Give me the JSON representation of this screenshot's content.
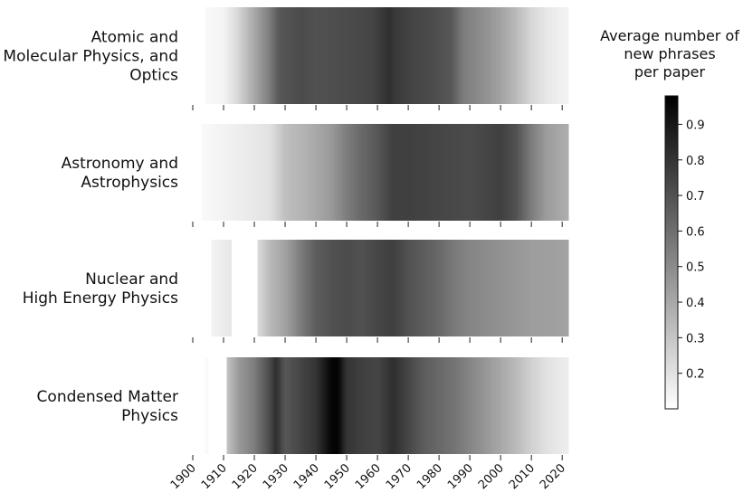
{
  "chart_data": {
    "type": "heatmap",
    "x_range": [
      1900,
      2022
    ],
    "x_ticks": [
      "1900",
      "1910",
      "1920",
      "1930",
      "1940",
      "1950",
      "1960",
      "1970",
      "1980",
      "1990",
      "2000",
      "2010",
      "2020"
    ],
    "colorbar": {
      "title_lines": [
        "Average number of",
        "new phrases",
        "per paper"
      ],
      "range": [
        0.1,
        0.98
      ],
      "ticks": [
        "0.2",
        "0.3",
        "0.4",
        "0.5",
        "0.6",
        "0.7",
        "0.8",
        "0.9"
      ],
      "colormap": "white-to-black"
    },
    "rows": [
      {
        "label_lines": [
          "Atomic and",
          "Molecular Physics, and",
          "Optics"
        ],
        "x_start": 1904,
        "x_end": 2022,
        "anchors": [
          [
            1904,
            0.12
          ],
          [
            1910,
            0.14
          ],
          [
            1914,
            0.22
          ],
          [
            1920,
            0.4
          ],
          [
            1925,
            0.55
          ],
          [
            1928,
            0.68
          ],
          [
            1935,
            0.72
          ],
          [
            1940,
            0.7
          ],
          [
            1950,
            0.72
          ],
          [
            1958,
            0.74
          ],
          [
            1964,
            0.82
          ],
          [
            1966,
            0.78
          ],
          [
            1972,
            0.74
          ],
          [
            1978,
            0.72
          ],
          [
            1984,
            0.68
          ],
          [
            1988,
            0.55
          ],
          [
            1995,
            0.48
          ],
          [
            2000,
            0.42
          ],
          [
            2005,
            0.34
          ],
          [
            2010,
            0.24
          ],
          [
            2015,
            0.18
          ],
          [
            2022,
            0.14
          ]
        ],
        "gaps": []
      },
      {
        "label_lines": [
          "Astronomy and",
          "Astrophysics"
        ],
        "x_start": 1903,
        "x_end": 2022,
        "anchors": [
          [
            1903,
            0.12
          ],
          [
            1915,
            0.16
          ],
          [
            1925,
            0.2
          ],
          [
            1930,
            0.32
          ],
          [
            1938,
            0.38
          ],
          [
            1945,
            0.45
          ],
          [
            1950,
            0.55
          ],
          [
            1955,
            0.62
          ],
          [
            1960,
            0.68
          ],
          [
            1965,
            0.76
          ],
          [
            1970,
            0.76
          ],
          [
            1980,
            0.74
          ],
          [
            1990,
            0.72
          ],
          [
            2000,
            0.76
          ],
          [
            2005,
            0.7
          ],
          [
            2010,
            0.55
          ],
          [
            2015,
            0.44
          ],
          [
            2022,
            0.38
          ]
        ],
        "gaps": []
      },
      {
        "label_lines": [
          "Nuclear and",
          "High Energy Physics"
        ],
        "x_start": 1906,
        "x_end": 2022,
        "anchors": [
          [
            1906,
            0.14
          ],
          [
            1912,
            0.18
          ],
          [
            1921,
            0.22
          ],
          [
            1925,
            0.34
          ],
          [
            1930,
            0.42
          ],
          [
            1935,
            0.55
          ],
          [
            1940,
            0.66
          ],
          [
            1945,
            0.7
          ],
          [
            1950,
            0.72
          ],
          [
            1955,
            0.7
          ],
          [
            1960,
            0.74
          ],
          [
            1965,
            0.76
          ],
          [
            1970,
            0.7
          ],
          [
            1980,
            0.62
          ],
          [
            1985,
            0.56
          ],
          [
            1990,
            0.52
          ],
          [
            2000,
            0.48
          ],
          [
            2010,
            0.44
          ],
          [
            2022,
            0.42
          ]
        ],
        "gaps": [
          [
            1912.5,
            1921
          ]
        ]
      },
      {
        "label_lines": [
          "Condensed Matter",
          "Physics"
        ],
        "x_start": 1904,
        "x_end": 2022,
        "anchors": [
          [
            1904,
            0.12
          ],
          [
            1905,
            0.12
          ],
          [
            1911,
            0.3
          ],
          [
            1915,
            0.45
          ],
          [
            1920,
            0.55
          ],
          [
            1925,
            0.72
          ],
          [
            1927,
            0.82
          ],
          [
            1930,
            0.68
          ],
          [
            1935,
            0.74
          ],
          [
            1940,
            0.8
          ],
          [
            1945,
            0.96
          ],
          [
            1947,
            0.97
          ],
          [
            1950,
            0.8
          ],
          [
            1955,
            0.76
          ],
          [
            1960,
            0.74
          ],
          [
            1965,
            0.82
          ],
          [
            1970,
            0.74
          ],
          [
            1975,
            0.66
          ],
          [
            1980,
            0.62
          ],
          [
            1985,
            0.58
          ],
          [
            1990,
            0.52
          ],
          [
            1995,
            0.46
          ],
          [
            2000,
            0.4
          ],
          [
            2005,
            0.34
          ],
          [
            2010,
            0.26
          ],
          [
            2015,
            0.2
          ],
          [
            2022,
            0.16
          ]
        ],
        "gaps": [
          [
            1905,
            1911
          ]
        ]
      }
    ]
  }
}
